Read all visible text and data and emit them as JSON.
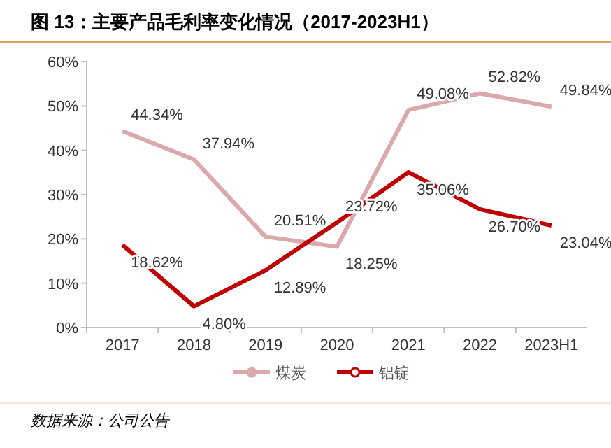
{
  "chart_data": {
    "type": "line",
    "title": "图 13：主要产品毛利率变化情况（2017-2023H1）",
    "categories": [
      "2017",
      "2018",
      "2019",
      "2020",
      "2021",
      "2022",
      "2023H1"
    ],
    "series": [
      {
        "name": "煤炭",
        "color": "#dba9ac",
        "values": [
          44.34,
          37.94,
          20.51,
          18.25,
          49.08,
          52.82,
          49.84
        ],
        "value_labels": [
          "44.34%",
          "37.94%",
          "20.51%",
          "18.25%",
          "49.08%",
          "52.82%",
          "49.84%"
        ]
      },
      {
        "name": "铝锭",
        "color": "#c00000",
        "values": [
          18.62,
          4.8,
          12.89,
          23.72,
          35.06,
          26.7,
          23.04
        ],
        "value_labels": [
          "18.62%",
          "4.80%",
          "12.89%",
          "23.72%",
          "35.06%",
          "26.70%",
          "23.04%"
        ]
      }
    ],
    "ylim": [
      0,
      60
    ],
    "yticks": [
      {
        "value": 0,
        "label": "0%"
      },
      {
        "value": 10,
        "label": "10%"
      },
      {
        "value": 20,
        "label": "20%"
      },
      {
        "value": 30,
        "label": "30%"
      },
      {
        "value": 40,
        "label": "40%"
      },
      {
        "value": 50,
        "label": "50%"
      },
      {
        "value": 60,
        "label": "60%"
      }
    ],
    "legend": "bottom",
    "annotations": [
      "数据来源：公司公告"
    ]
  }
}
